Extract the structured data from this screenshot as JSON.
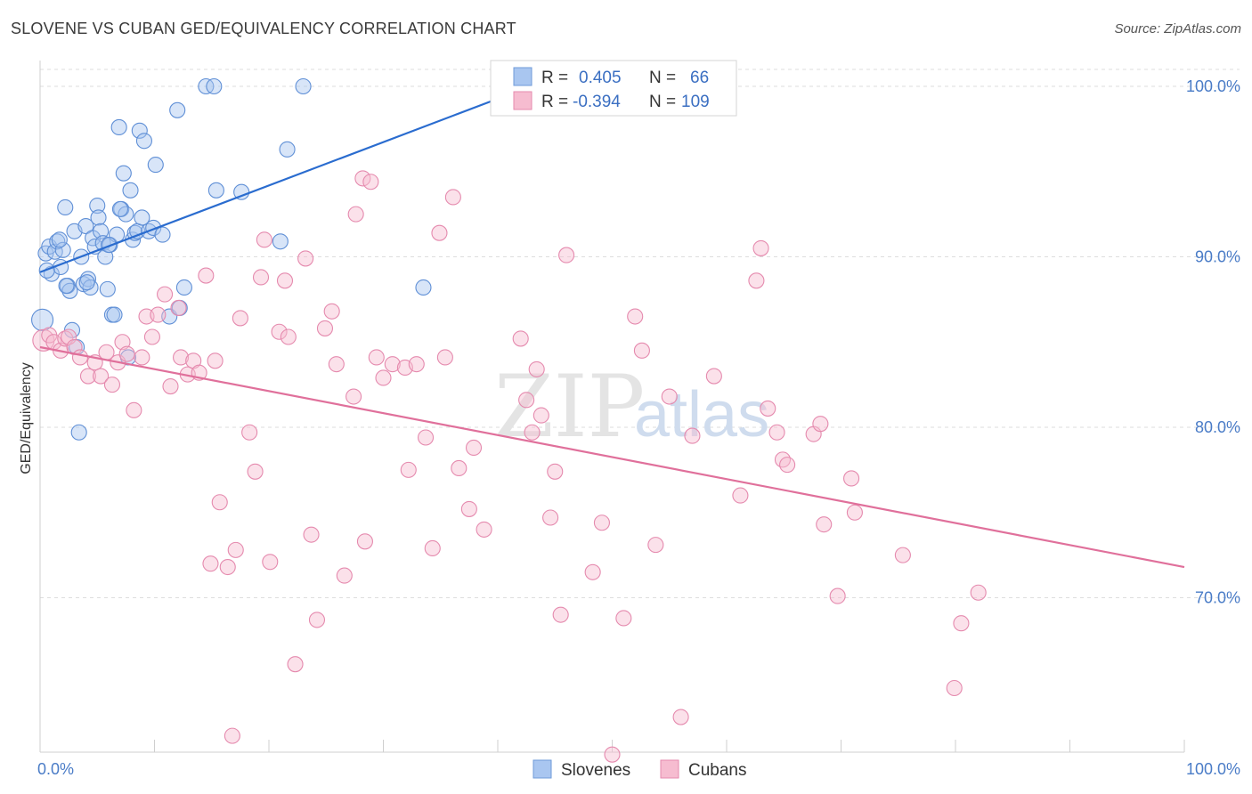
{
  "header": {
    "title": "SLOVENE VS CUBAN GED/EQUIVALENCY CORRELATION CHART",
    "source": "Source: ZipAtlas.com"
  },
  "watermark": {
    "zip": "ZIP",
    "atlas": "atlas"
  },
  "colors": {
    "blue": "#4a7cc7",
    "blue_fill": "#a9c6f0",
    "blue_line": "#2a6ccf",
    "pink_fill": "#f6bcd0",
    "pink_line": "#e0709b",
    "grid": "#dddddd"
  },
  "chart_data": {
    "type": "scatter",
    "xlabel": "",
    "ylabel": "GED/Equivalency",
    "xlim": [
      0,
      100
    ],
    "ylim": [
      60.5,
      103.5
    ],
    "x_tick_labels": [
      {
        "value": 0,
        "label": "0.0%"
      },
      {
        "value": 100,
        "label": "100.0%"
      }
    ],
    "y_tick_labels": [
      {
        "value": 100,
        "label": "100.0%"
      },
      {
        "value": 90,
        "label": "90.0%"
      },
      {
        "value": 80,
        "label": "80.0%"
      },
      {
        "value": 70,
        "label": "70.0%"
      }
    ],
    "grid": "horizontal-dashed",
    "legend_position": "top-center",
    "bottom_legend": [
      "Slovenes",
      "Cubans"
    ],
    "series": [
      {
        "name": "Slovenes",
        "color": "#a9c6f0",
        "stats": {
          "r_label": "R =",
          "r": "0.405",
          "n_label": "N =",
          "n": "66"
        },
        "trend": {
          "x": [
            0,
            40.5
          ],
          "y": [
            89.1,
            99.4
          ]
        },
        "points": [
          [
            0.2,
            86.3
          ],
          [
            0.5,
            90.2
          ],
          [
            0.8,
            90.6
          ],
          [
            1.0,
            89.0
          ],
          [
            1.3,
            90.3
          ],
          [
            1.5,
            90.9
          ],
          [
            1.8,
            89.4
          ],
          [
            2.0,
            90.4
          ],
          [
            2.2,
            92.9
          ],
          [
            2.4,
            88.3
          ],
          [
            2.6,
            88.0
          ],
          [
            2.8,
            85.7
          ],
          [
            3.0,
            91.5
          ],
          [
            3.2,
            84.7
          ],
          [
            3.4,
            79.7
          ],
          [
            3.6,
            90.0
          ],
          [
            3.8,
            88.4
          ],
          [
            4.0,
            91.8
          ],
          [
            4.2,
            88.7
          ],
          [
            4.4,
            88.2
          ],
          [
            4.6,
            91.1
          ],
          [
            4.8,
            90.6
          ],
          [
            5.0,
            93.0
          ],
          [
            5.1,
            92.3
          ],
          [
            5.3,
            91.5
          ],
          [
            5.5,
            90.8
          ],
          [
            5.7,
            90.0
          ],
          [
            5.9,
            88.1
          ],
          [
            6.1,
            90.7
          ],
          [
            6.3,
            86.6
          ],
          [
            6.5,
            86.6
          ],
          [
            6.7,
            91.3
          ],
          [
            6.9,
            97.6
          ],
          [
            7.1,
            92.8
          ],
          [
            7.3,
            94.9
          ],
          [
            7.5,
            92.5
          ],
          [
            7.7,
            84.1
          ],
          [
            7.9,
            93.9
          ],
          [
            8.1,
            91.0
          ],
          [
            8.3,
            91.4
          ],
          [
            8.5,
            91.5
          ],
          [
            8.7,
            97.4
          ],
          [
            8.9,
            92.3
          ],
          [
            9.1,
            96.8
          ],
          [
            9.5,
            91.5
          ],
          [
            9.9,
            91.7
          ],
          [
            10.1,
            95.4
          ],
          [
            10.7,
            91.3
          ],
          [
            11.3,
            86.5
          ],
          [
            12.0,
            98.6
          ],
          [
            12.2,
            87.0
          ],
          [
            12.6,
            88.2
          ],
          [
            14.5,
            100.0
          ],
          [
            15.2,
            100.0
          ],
          [
            15.4,
            93.9
          ],
          [
            17.6,
            93.8
          ],
          [
            21.0,
            90.9
          ],
          [
            21.6,
            96.3
          ],
          [
            23.0,
            100.0
          ],
          [
            33.5,
            88.2
          ],
          [
            0.6,
            89.2
          ],
          [
            1.7,
            91.0
          ],
          [
            2.3,
            88.3
          ],
          [
            4.1,
            88.5
          ],
          [
            6.0,
            90.7
          ],
          [
            7.0,
            92.8
          ]
        ]
      },
      {
        "name": "Cubans",
        "color": "#f6bcd0",
        "stats": {
          "r_label": "R =",
          "r": "-0.394",
          "n_label": "N =",
          "n": "109"
        },
        "trend": {
          "x": [
            0,
            100
          ],
          "y": [
            84.7,
            71.8
          ]
        },
        "points": [
          [
            0.3,
            85.1
          ],
          [
            0.8,
            85.4
          ],
          [
            1.2,
            85.0
          ],
          [
            1.8,
            84.5
          ],
          [
            2.2,
            85.2
          ],
          [
            2.5,
            85.3
          ],
          [
            3.0,
            84.7
          ],
          [
            3.5,
            84.1
          ],
          [
            4.2,
            83.0
          ],
          [
            4.8,
            83.8
          ],
          [
            5.3,
            83.0
          ],
          [
            5.8,
            84.4
          ],
          [
            6.3,
            82.5
          ],
          [
            6.8,
            83.8
          ],
          [
            7.2,
            85.0
          ],
          [
            7.6,
            84.3
          ],
          [
            8.2,
            81.0
          ],
          [
            8.9,
            84.1
          ],
          [
            9.3,
            86.5
          ],
          [
            9.8,
            85.3
          ],
          [
            10.3,
            86.6
          ],
          [
            10.9,
            87.8
          ],
          [
            11.4,
            82.4
          ],
          [
            12.1,
            87.0
          ],
          [
            12.3,
            84.1
          ],
          [
            12.9,
            83.1
          ],
          [
            13.4,
            83.9
          ],
          [
            13.9,
            83.2
          ],
          [
            14.5,
            88.9
          ],
          [
            14.9,
            72.0
          ],
          [
            15.3,
            83.9
          ],
          [
            15.7,
            75.6
          ],
          [
            16.4,
            71.8
          ],
          [
            16.8,
            61.9
          ],
          [
            17.1,
            72.8
          ],
          [
            17.5,
            86.4
          ],
          [
            18.3,
            79.7
          ],
          [
            18.8,
            77.4
          ],
          [
            19.3,
            88.8
          ],
          [
            19.6,
            91.0
          ],
          [
            20.1,
            72.1
          ],
          [
            20.9,
            85.6
          ],
          [
            21.4,
            88.6
          ],
          [
            21.7,
            85.3
          ],
          [
            22.3,
            66.1
          ],
          [
            23.2,
            89.9
          ],
          [
            23.7,
            73.7
          ],
          [
            24.2,
            68.7
          ],
          [
            24.9,
            85.8
          ],
          [
            25.5,
            86.8
          ],
          [
            25.9,
            83.7
          ],
          [
            26.6,
            71.3
          ],
          [
            27.4,
            81.8
          ],
          [
            27.6,
            92.5
          ],
          [
            28.4,
            73.3
          ],
          [
            28.2,
            94.6
          ],
          [
            28.9,
            94.4
          ],
          [
            29.4,
            84.1
          ],
          [
            30.0,
            82.9
          ],
          [
            30.8,
            83.7
          ],
          [
            31.9,
            83.5
          ],
          [
            32.2,
            77.5
          ],
          [
            32.9,
            83.7
          ],
          [
            33.7,
            79.4
          ],
          [
            34.3,
            72.9
          ],
          [
            34.9,
            91.4
          ],
          [
            35.4,
            84.1
          ],
          [
            36.1,
            93.5
          ],
          [
            36.6,
            77.6
          ],
          [
            37.5,
            75.2
          ],
          [
            37.9,
            78.8
          ],
          [
            38.8,
            74.0
          ],
          [
            42.0,
            85.2
          ],
          [
            42.5,
            81.6
          ],
          [
            43.0,
            79.7
          ],
          [
            43.4,
            83.4
          ],
          [
            43.8,
            80.7
          ],
          [
            44.6,
            74.7
          ],
          [
            45.0,
            77.4
          ],
          [
            45.5,
            69.0
          ],
          [
            46.0,
            90.1
          ],
          [
            48.3,
            71.5
          ],
          [
            49.1,
            74.4
          ],
          [
            50.0,
            60.8
          ],
          [
            51.0,
            68.8
          ],
          [
            52.0,
            86.5
          ],
          [
            52.6,
            84.5
          ],
          [
            53.8,
            73.1
          ],
          [
            55.0,
            81.8
          ],
          [
            56.0,
            63.0
          ],
          [
            57.0,
            79.5
          ],
          [
            58.9,
            83.0
          ],
          [
            61.2,
            76.0
          ],
          [
            62.6,
            88.6
          ],
          [
            63.0,
            90.5
          ],
          [
            63.6,
            81.1
          ],
          [
            64.4,
            79.7
          ],
          [
            64.9,
            78.1
          ],
          [
            65.3,
            77.8
          ],
          [
            67.6,
            79.6
          ],
          [
            68.2,
            80.2
          ],
          [
            68.5,
            74.3
          ],
          [
            69.7,
            70.1
          ],
          [
            70.9,
            77.0
          ],
          [
            71.2,
            75.0
          ],
          [
            75.4,
            72.5
          ],
          [
            79.9,
            64.7
          ],
          [
            80.5,
            68.5
          ],
          [
            82.0,
            70.3
          ]
        ]
      }
    ]
  }
}
